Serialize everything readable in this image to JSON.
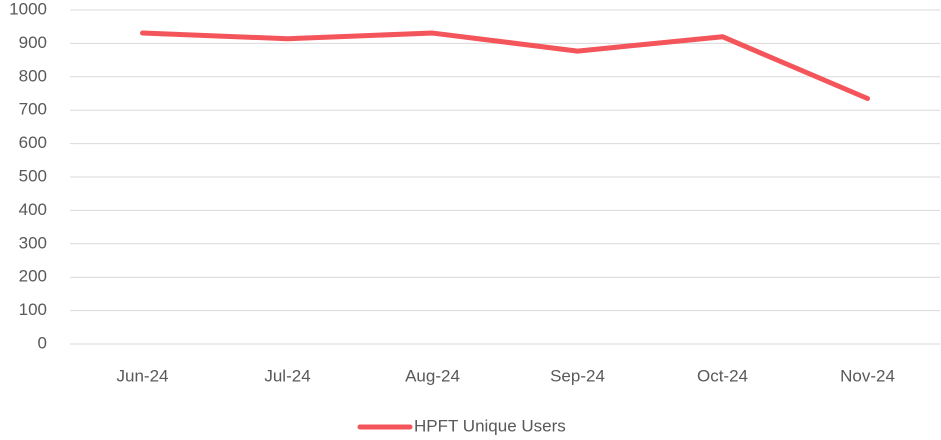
{
  "chart_data": {
    "type": "line",
    "categories": [
      "Jun-24",
      "Jul-24",
      "Aug-24",
      "Sep-24",
      "Oct-24",
      "Nov-24"
    ],
    "series": [
      {
        "name": "HPFT Unique Users",
        "color": "#f4555a",
        "values": [
          931,
          914,
          931,
          877,
          920,
          735
        ]
      }
    ],
    "ylim": [
      0,
      1000
    ],
    "yticks": [
      0,
      100,
      200,
      300,
      400,
      500,
      600,
      700,
      800,
      900,
      1000
    ],
    "grid": true,
    "legend": "bottom"
  }
}
